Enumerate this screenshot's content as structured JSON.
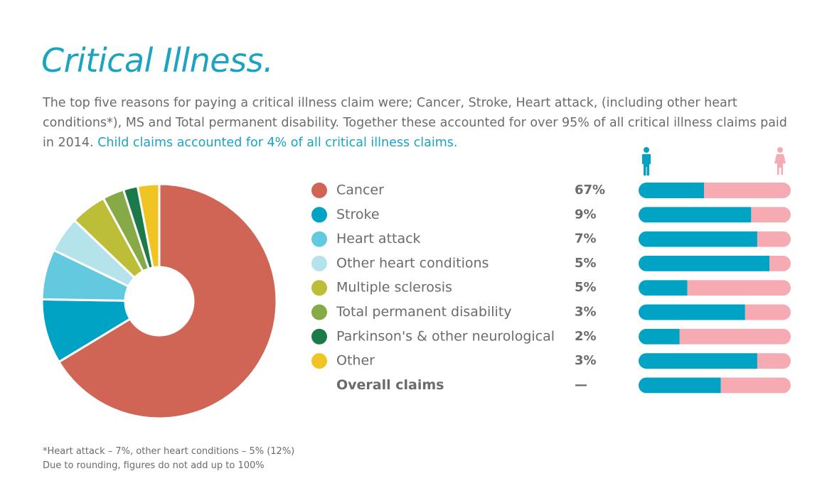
{
  "header": {
    "title": "Critical Illness.",
    "intro": "The top five reasons for paying a critical illness claim were; Cancer, Stroke, Heart attack, (including other heart conditions*), MS and Total permanent disability. Together these accounted for over 95% of all critical illness claims paid in 2014.",
    "highlight": "Child claims accounted for 4% of all critical illness claims."
  },
  "chart_data": [
    {
      "type": "pie",
      "donut": true,
      "categories": [
        "Cancer",
        "Stroke",
        "Heart attack",
        "Other heart conditions",
        "Multiple sclerosis",
        "Total permanent disability",
        "Parkinson's & other neurological",
        "Other"
      ],
      "values": [
        67,
        9,
        7,
        5,
        5,
        3,
        2,
        3
      ],
      "value_labels": [
        "67%",
        "9%",
        "7%",
        "5%",
        "5%",
        "3%",
        "2%",
        "3%"
      ],
      "colors": [
        "#d06455",
        "#00a3c4",
        "#63c9de",
        "#b5e3ec",
        "#bcbe38",
        "#86ab46",
        "#1b7a4a",
        "#f0c423"
      ]
    },
    {
      "type": "bar",
      "orientation": "horizontal",
      "stacked": true,
      "xlim": [
        0,
        100
      ],
      "series": [
        {
          "color": "#00a3c4",
          "values": [
            43,
            74,
            78,
            86,
            32,
            70,
            27,
            78,
            54
          ]
        },
        {
          "color": "#f5abb1",
          "values": [
            57,
            26,
            22,
            14,
            68,
            30,
            73,
            22,
            46
          ]
        }
      ],
      "overall": {
        "label": "Overall claims",
        "value_label": "—"
      }
    }
  ],
  "footnotes": [
    "*Heart attack – 7%, other heart conditions – 5% (12%)",
    "Due to rounding, figures do not add up to 100%"
  ]
}
